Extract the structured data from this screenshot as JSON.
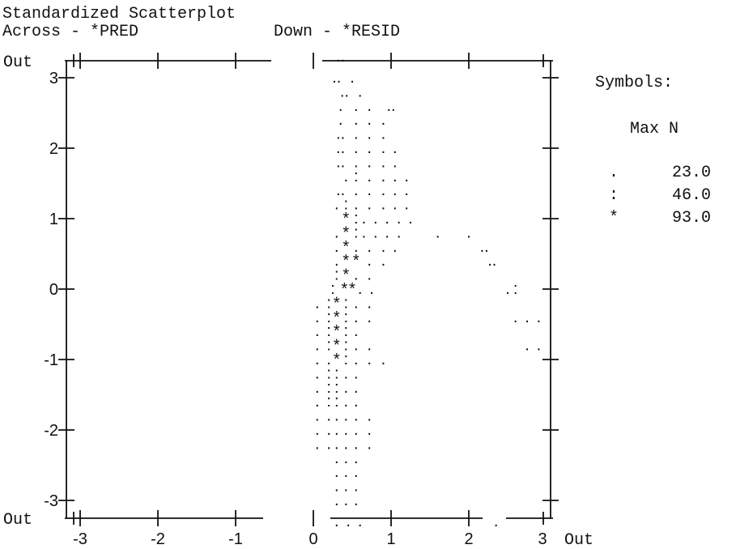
{
  "header": {
    "title": "Standardized Scatterplot",
    "across_label": "Across - *PRED",
    "down_label": "Down - *RESID"
  },
  "legend": {
    "title": "Symbols:",
    "subtitle": "Max N",
    "rows": [
      {
        "symbol": ".",
        "max_n": "23.0"
      },
      {
        "symbol": ":",
        "max_n": "46.0"
      },
      {
        "symbol": "*",
        "max_n": "93.0"
      }
    ]
  },
  "chart_data": {
    "type": "scatter",
    "title": "Standardized Scatterplot",
    "xlabel": "Across - *PRED",
    "ylabel": "Down - *RESID",
    "xlim": [
      -3.3,
      3.3
    ],
    "ylim": [
      -3.3,
      3.3
    ],
    "grid": false,
    "legend_position": "right",
    "x_ticks": [
      "-3",
      "-2",
      "-1",
      "0",
      "1",
      "2",
      "3",
      "Out"
    ],
    "y_ticks": [
      "Out",
      "3",
      "2",
      "1",
      "0",
      "-1",
      "-2",
      "-3",
      "Out"
    ],
    "x_tick_values": [
      -3,
      -2,
      -1,
      0,
      1,
      2,
      3
    ],
    "y_tick_values": [
      3,
      2,
      1,
      0,
      -1,
      -2,
      -3
    ],
    "cell_width": 0.17,
    "cell_height": 0.2,
    "rows": [
      {
        "y": 3.3,
        "cells": [
          [
            "..",
            0.35
          ]
        ]
      },
      {
        "y": 3.0,
        "cells": [
          [
            ".",
            0.5
          ],
          [
            "..",
            0.3
          ]
        ]
      },
      {
        "y": 2.8,
        "cells": [
          [
            ".",
            0.6
          ],
          [
            "..",
            0.4
          ]
        ]
      },
      {
        "y": 2.6,
        "cells": [
          [
            "..",
            1.0
          ],
          [
            ".",
            0.72
          ],
          [
            ".",
            0.55
          ],
          [
            ".",
            0.35
          ]
        ]
      },
      {
        "y": 2.4,
        "cells": [
          [
            ".",
            0.9
          ],
          [
            ".",
            0.72
          ],
          [
            ".",
            0.55
          ],
          [
            ".",
            0.35
          ]
        ]
      },
      {
        "y": 2.2,
        "cells": [
          [
            ".",
            0.9
          ],
          [
            ".",
            0.72
          ],
          [
            ".",
            0.55
          ],
          [
            "..",
            0.35
          ]
        ]
      },
      {
        "y": 2.0,
        "cells": [
          [
            ".",
            1.05
          ],
          [
            ".",
            0.9
          ],
          [
            ".",
            0.72
          ],
          [
            ".",
            0.55
          ],
          [
            "..",
            0.35
          ]
        ]
      },
      {
        "y": 1.8,
        "cells": [
          [
            ".",
            1.05
          ],
          [
            ".",
            0.9
          ],
          [
            ".",
            0.72
          ],
          [
            ".",
            0.55
          ],
          [
            "..",
            0.35
          ]
        ]
      },
      {
        "y": 1.6,
        "cells": [
          [
            ".",
            1.2
          ],
          [
            ".",
            1.05
          ],
          [
            ".",
            0.9
          ],
          [
            ".",
            0.72
          ],
          [
            ":",
            0.55
          ],
          [
            ".",
            0.42
          ]
        ]
      },
      {
        "y": 1.4,
        "cells": [
          [
            ".",
            1.2
          ],
          [
            ".",
            1.05
          ],
          [
            ".",
            0.9
          ],
          [
            ".",
            0.72
          ],
          [
            ".",
            0.55
          ],
          [
            "..",
            0.35
          ]
        ]
      },
      {
        "y": 1.2,
        "cells": [
          [
            ".",
            1.2
          ],
          [
            ".",
            1.05
          ],
          [
            ".",
            0.9
          ],
          [
            ".",
            0.72
          ],
          [
            ".",
            0.55
          ],
          [
            ":",
            0.42
          ],
          [
            ".",
            0.3
          ]
        ]
      },
      {
        "y": 1.0,
        "cells": [
          [
            ".",
            1.25
          ],
          [
            ".",
            1.1
          ],
          [
            ".",
            0.95
          ],
          [
            ".",
            0.8
          ],
          [
            ".",
            0.65
          ],
          [
            ":",
            0.55
          ],
          [
            "*",
            0.42
          ]
        ]
      },
      {
        "y": 0.8,
        "cells": [
          [
            ".",
            1.1
          ],
          [
            ".",
            0.95
          ],
          [
            ".",
            0.8
          ],
          [
            ".",
            0.65
          ],
          [
            ":",
            0.55
          ],
          [
            "*",
            0.42
          ],
          [
            ".",
            0.3
          ],
          [
            ".",
            1.6
          ],
          [
            ".",
            2.0
          ]
        ]
      },
      {
        "y": 0.6,
        "cells": [
          [
            ".",
            1.05
          ],
          [
            ".",
            0.9
          ],
          [
            ".",
            0.72
          ],
          [
            ".",
            0.55
          ],
          [
            "*",
            0.42
          ],
          [
            ".",
            0.3
          ],
          [
            "..",
            2.2
          ]
        ]
      },
      {
        "y": 0.4,
        "cells": [
          [
            ".",
            0.9
          ],
          [
            ".",
            0.72
          ],
          [
            "*",
            0.55
          ],
          [
            "*",
            0.42
          ],
          [
            ".",
            0.3
          ],
          [
            "..",
            2.3
          ]
        ]
      },
      {
        "y": 0.2,
        "cells": [
          [
            ".",
            0.72
          ],
          [
            ".",
            0.55
          ],
          [
            "*",
            0.42
          ],
          [
            ":",
            0.3
          ]
        ]
      },
      {
        "y": 0.0,
        "cells": [
          [
            ".",
            0.75
          ],
          [
            ".",
            0.6
          ],
          [
            "*",
            0.5
          ],
          [
            "*",
            0.4
          ],
          [
            ":",
            0.25
          ],
          [
            ".",
            2.5
          ],
          [
            ":",
            2.6
          ]
        ]
      },
      {
        "y": -0.2,
        "cells": [
          [
            ".",
            0.72
          ],
          [
            ".",
            0.55
          ],
          [
            ":",
            0.42
          ],
          [
            "*",
            0.3
          ],
          [
            ":",
            0.2
          ],
          [
            ".",
            0.05
          ]
        ]
      },
      {
        "y": -0.4,
        "cells": [
          [
            ".",
            0.72
          ],
          [
            ".",
            0.55
          ],
          [
            ":",
            0.42
          ],
          [
            "*",
            0.3
          ],
          [
            ":",
            0.2
          ],
          [
            ".",
            0.05
          ],
          [
            ".",
            2.6
          ],
          [
            ".",
            2.75
          ],
          [
            ".",
            2.9
          ]
        ]
      },
      {
        "y": -0.6,
        "cells": [
          [
            ".",
            0.55
          ],
          [
            ":",
            0.42
          ],
          [
            "*",
            0.3
          ],
          [
            ":",
            0.2
          ],
          [
            ".",
            0.05
          ]
        ]
      },
      {
        "y": -0.8,
        "cells": [
          [
            ".",
            0.72
          ],
          [
            ".",
            0.55
          ],
          [
            ":",
            0.42
          ],
          [
            "*",
            0.3
          ],
          [
            ":",
            0.2
          ],
          [
            ".",
            0.05
          ],
          [
            ".",
            2.75
          ],
          [
            ".",
            2.9
          ]
        ]
      },
      {
        "y": -1.0,
        "cells": [
          [
            ".",
            0.9
          ],
          [
            ".",
            0.72
          ],
          [
            ".",
            0.55
          ],
          [
            ":",
            0.42
          ],
          [
            "*",
            0.3
          ],
          [
            ".",
            0.2
          ],
          [
            ".",
            0.05
          ]
        ]
      },
      {
        "y": -1.2,
        "cells": [
          [
            ".",
            0.55
          ],
          [
            ".",
            0.42
          ],
          [
            ":",
            0.3
          ],
          [
            ":",
            0.2
          ],
          [
            ".",
            0.05
          ]
        ]
      },
      {
        "y": -1.4,
        "cells": [
          [
            ".",
            0.55
          ],
          [
            ".",
            0.42
          ],
          [
            ":",
            0.3
          ],
          [
            ":",
            0.2
          ],
          [
            ".",
            0.05
          ]
        ]
      },
      {
        "y": -1.6,
        "cells": [
          [
            ".",
            0.55
          ],
          [
            ".",
            0.42
          ],
          [
            ":",
            0.3
          ],
          [
            ":",
            0.2
          ],
          [
            ".",
            0.05
          ]
        ]
      },
      {
        "y": -1.8,
        "cells": [
          [
            ".",
            0.72
          ],
          [
            ".",
            0.55
          ],
          [
            ".",
            0.42
          ],
          [
            ".",
            0.3
          ],
          [
            ".",
            0.2
          ],
          [
            ".",
            0.05
          ]
        ]
      },
      {
        "y": -2.0,
        "cells": [
          [
            ".",
            0.72
          ],
          [
            ".",
            0.55
          ],
          [
            ".",
            0.42
          ],
          [
            ".",
            0.3
          ],
          [
            ".",
            0.2
          ],
          [
            ".",
            0.05
          ]
        ]
      },
      {
        "y": -2.2,
        "cells": [
          [
            ".",
            0.72
          ],
          [
            ".",
            0.55
          ],
          [
            ".",
            0.42
          ],
          [
            ".",
            0.3
          ],
          [
            ".",
            0.2
          ],
          [
            ".",
            0.05
          ]
        ]
      },
      {
        "y": -2.4,
        "cells": [
          [
            ".",
            0.55
          ],
          [
            ".",
            0.42
          ],
          [
            ".",
            0.3
          ]
        ]
      },
      {
        "y": -2.6,
        "cells": [
          [
            ".",
            0.55
          ],
          [
            ".",
            0.42
          ],
          [
            ".",
            0.3
          ]
        ]
      },
      {
        "y": -2.8,
        "cells": [
          [
            ".",
            0.55
          ],
          [
            ".",
            0.42
          ],
          [
            ".",
            0.3
          ]
        ]
      },
      {
        "y": -3.0,
        "cells": [
          [
            ".",
            0.55
          ],
          [
            ".",
            0.42
          ],
          [
            ".",
            0.3
          ]
        ]
      },
      {
        "y": -3.3,
        "cells": [
          [
            ".",
            0.6
          ],
          [
            ".",
            0.45
          ],
          [
            ".",
            0.3
          ],
          [
            ".",
            0.0
          ],
          [
            ".",
            2.35
          ]
        ]
      }
    ]
  }
}
